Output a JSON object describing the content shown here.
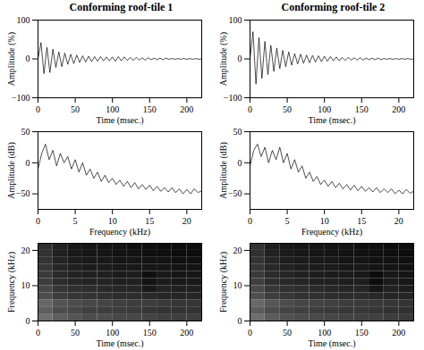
{
  "chart_data": [
    {
      "type": "line",
      "title": "Conforming roof-tile 1",
      "x_label": "Time (msec.)",
      "y_label": "Amplitude (%)",
      "xlim": [
        0,
        220
      ],
      "xticks": [
        0,
        50,
        100,
        150,
        200
      ],
      "ylim": [
        -100,
        100
      ],
      "yticks": [
        -100,
        0,
        100
      ],
      "color": "#000000",
      "x": [
        0,
        4,
        8,
        12,
        16,
        20,
        24,
        28,
        32,
        36,
        40,
        44,
        48,
        52,
        56,
        60,
        64,
        68,
        72,
        76,
        80,
        84,
        88,
        92,
        96,
        100,
        104,
        108,
        112,
        116,
        120,
        124,
        128,
        132,
        136,
        140,
        144,
        148,
        152,
        156,
        160,
        164,
        168,
        172,
        176,
        180,
        184,
        188,
        192,
        196,
        200,
        204,
        208,
        212,
        216,
        220
      ],
      "values": [
        0,
        42,
        -38,
        30,
        -35,
        25,
        -22,
        18,
        -20,
        15,
        -14,
        12,
        -12,
        10,
        -9,
        8,
        -8,
        7,
        -7,
        6,
        -6,
        6,
        -5,
        5,
        -5,
        5,
        -6,
        6,
        -5,
        5,
        -4,
        4,
        -4,
        4,
        -3,
        3,
        -3,
        3,
        -2,
        2,
        -2,
        2,
        -2,
        2,
        -1,
        1,
        -1,
        1,
        -1,
        1,
        -1,
        1,
        -1,
        1,
        -1,
        0
      ]
    },
    {
      "type": "line",
      "title": "Conforming roof-tile 2",
      "x_label": "Time (msec.)",
      "y_label": "Amplitude (%)",
      "xlim": [
        0,
        220
      ],
      "xticks": [
        0,
        50,
        100,
        150,
        200
      ],
      "ylim": [
        -100,
        100
      ],
      "yticks": [
        -100,
        0,
        100
      ],
      "color": "#000000",
      "x": [
        0,
        4,
        8,
        12,
        16,
        20,
        24,
        28,
        32,
        36,
        40,
        44,
        48,
        52,
        56,
        60,
        64,
        68,
        72,
        76,
        80,
        84,
        88,
        92,
        96,
        100,
        104,
        108,
        112,
        116,
        120,
        124,
        128,
        132,
        136,
        140,
        144,
        148,
        152,
        156,
        160,
        164,
        168,
        172,
        176,
        180,
        184,
        188,
        192,
        196,
        200,
        204,
        208,
        212,
        216,
        220
      ],
      "values": [
        0,
        70,
        -65,
        55,
        -50,
        45,
        -40,
        35,
        -32,
        28,
        -25,
        22,
        -20,
        18,
        -16,
        14,
        -13,
        12,
        -11,
        10,
        -10,
        9,
        -8,
        8,
        -7,
        7,
        -6,
        6,
        -5,
        5,
        -5,
        4,
        -4,
        4,
        -3,
        3,
        -3,
        3,
        -3,
        2,
        -2,
        2,
        -2,
        2,
        -2,
        1,
        -1,
        1,
        -1,
        1,
        -1,
        1,
        -1,
        1,
        -1,
        0
      ]
    },
    {
      "type": "line",
      "x_label": "Frequency (kHz)",
      "y_label": "Amplitude (dB)",
      "xlim": [
        0,
        22
      ],
      "xticks": [
        0,
        5,
        10,
        15,
        20
      ],
      "ylim": [
        -75,
        50
      ],
      "yticks": [
        -50,
        0,
        50
      ],
      "color": "#000000",
      "x": [
        0,
        0.5,
        1,
        1.5,
        2,
        2.5,
        3,
        3.5,
        4,
        4.5,
        5,
        5.5,
        6,
        6.5,
        7,
        7.5,
        8,
        8.5,
        9,
        9.5,
        10,
        10.5,
        11,
        11.5,
        12,
        12.5,
        13,
        13.5,
        14,
        14.5,
        15,
        15.5,
        16,
        16.5,
        17,
        17.5,
        18,
        18.5,
        19,
        19.5,
        20,
        20.5,
        21,
        21.5,
        22
      ],
      "values": [
        -10,
        15,
        30,
        5,
        20,
        -5,
        15,
        0,
        10,
        -10,
        5,
        -15,
        0,
        -20,
        -10,
        -25,
        -15,
        -30,
        -20,
        -32,
        -25,
        -35,
        -28,
        -38,
        -30,
        -40,
        -32,
        -42,
        -35,
        -43,
        -36,
        -45,
        -38,
        -46,
        -40,
        -47,
        -40,
        -48,
        -42,
        -50,
        -43,
        -50,
        -42,
        -48,
        -45
      ]
    },
    {
      "type": "line",
      "x_label": "Frequency (kHz)",
      "y_label": "Amplitude (dB)",
      "xlim": [
        0,
        22
      ],
      "xticks": [
        0,
        5,
        10,
        15,
        20
      ],
      "ylim": [
        -75,
        50
      ],
      "yticks": [
        -50,
        0,
        50
      ],
      "color": "#000000",
      "x": [
        0,
        0.5,
        1,
        1.5,
        2,
        2.5,
        3,
        3.5,
        4,
        4.5,
        5,
        5.5,
        6,
        6.5,
        7,
        7.5,
        8,
        8.5,
        9,
        9.5,
        10,
        10.5,
        11,
        11.5,
        12,
        12.5,
        13,
        13.5,
        14,
        14.5,
        15,
        15.5,
        16,
        16.5,
        17,
        17.5,
        18,
        18.5,
        19,
        19.5,
        20,
        20.5,
        21,
        21.5,
        22
      ],
      "values": [
        -5,
        20,
        30,
        10,
        25,
        0,
        20,
        5,
        25,
        0,
        15,
        -10,
        5,
        -15,
        -5,
        -25,
        -15,
        -30,
        -22,
        -35,
        -28,
        -38,
        -30,
        -40,
        -33,
        -42,
        -35,
        -44,
        -36,
        -45,
        -38,
        -46,
        -40,
        -47,
        -40,
        -48,
        -42,
        -48,
        -42,
        -50,
        -44,
        -50,
        -43,
        -49,
        -46
      ]
    },
    {
      "type": "heatmap",
      "x_label": "Time (msec.)",
      "y_label": "Frequency (kHz)",
      "xlim": [
        0,
        220
      ],
      "xticks": [
        0,
        50,
        100,
        150,
        200
      ],
      "ylim": [
        0,
        22
      ],
      "yticks": [
        0,
        10,
        20
      ],
      "x_edges": [
        0,
        20,
        40,
        60,
        80,
        100,
        120,
        140,
        160,
        180,
        200,
        220
      ],
      "y_edges": [
        0,
        2,
        4,
        6,
        8,
        10,
        12,
        14,
        16,
        18,
        20,
        22
      ],
      "cells": [
        [
          -40,
          -45,
          -48,
          -50,
          -50,
          -52,
          -52,
          -53,
          -54,
          -55,
          -55
        ],
        [
          -45,
          -50,
          -52,
          -54,
          -55,
          -55,
          -56,
          -57,
          -58,
          -58,
          -58
        ],
        [
          -42,
          -48,
          -50,
          -52,
          -53,
          -54,
          -55,
          -55,
          -56,
          -57,
          -57
        ],
        [
          -50,
          -55,
          -57,
          -58,
          -59,
          -60,
          -60,
          -61,
          -62,
          -62,
          -62
        ],
        [
          -52,
          -57,
          -59,
          -60,
          -61,
          -62,
          -62,
          -66,
          -63,
          -64,
          -64
        ],
        [
          -55,
          -60,
          -62,
          -63,
          -63,
          -64,
          -64,
          -68,
          -65,
          -66,
          -66
        ],
        [
          -56,
          -61,
          -63,
          -64,
          -64,
          -65,
          -65,
          -69,
          -66,
          -67,
          -67
        ],
        [
          -57,
          -62,
          -64,
          -65,
          -65,
          -66,
          -66,
          -67,
          -67,
          -68,
          -68
        ],
        [
          -58,
          -63,
          -65,
          -66,
          -66,
          -67,
          -67,
          -68,
          -68,
          -69,
          -69
        ],
        [
          -58,
          -64,
          -66,
          -67,
          -67,
          -68,
          -68,
          -69,
          -69,
          -70,
          -70
        ],
        [
          -59,
          -64,
          -66,
          -67,
          -68,
          -68,
          -69,
          -69,
          -70,
          -70,
          -70
        ]
      ]
    },
    {
      "type": "heatmap",
      "x_label": "Time (msec.)",
      "y_label": "Frequency (kHz)",
      "xlim": [
        0,
        220
      ],
      "xticks": [
        0,
        50,
        100,
        150,
        200
      ],
      "ylim": [
        0,
        22
      ],
      "yticks": [
        0,
        10,
        20
      ],
      "x_edges": [
        0,
        20,
        40,
        60,
        80,
        100,
        120,
        140,
        160,
        180,
        200,
        220
      ],
      "y_edges": [
        0,
        2,
        4,
        6,
        8,
        10,
        12,
        14,
        16,
        18,
        20,
        22
      ],
      "cells": [
        [
          -38,
          -44,
          -47,
          -49,
          -50,
          -51,
          -52,
          -53,
          -53,
          -54,
          -55
        ],
        [
          -44,
          -49,
          -52,
          -53,
          -54,
          -55,
          -56,
          -56,
          -57,
          -58,
          -58
        ],
        [
          -40,
          -46,
          -49,
          -51,
          -52,
          -53,
          -54,
          -55,
          -55,
          -56,
          -57
        ],
        [
          -48,
          -54,
          -56,
          -58,
          -58,
          -59,
          -60,
          -60,
          -61,
          -62,
          -62
        ],
        [
          -50,
          -56,
          -58,
          -59,
          -60,
          -61,
          -62,
          -62,
          -67,
          -63,
          -64
        ],
        [
          -53,
          -59,
          -61,
          -62,
          -63,
          -63,
          -64,
          -64,
          -70,
          -65,
          -66
        ],
        [
          -55,
          -60,
          -62,
          -63,
          -64,
          -65,
          -65,
          -66,
          -70,
          -66,
          -67
        ],
        [
          -56,
          -61,
          -63,
          -64,
          -65,
          -65,
          -66,
          -66,
          -67,
          -67,
          -68
        ],
        [
          -57,
          -62,
          -64,
          -65,
          -66,
          -66,
          -67,
          -67,
          -68,
          -68,
          -69
        ],
        [
          -58,
          -63,
          -65,
          -66,
          -67,
          -67,
          -68,
          -68,
          -69,
          -69,
          -70
        ],
        [
          -58,
          -64,
          -66,
          -67,
          -67,
          -68,
          -68,
          -69,
          -69,
          -70,
          -70
        ]
      ]
    }
  ]
}
